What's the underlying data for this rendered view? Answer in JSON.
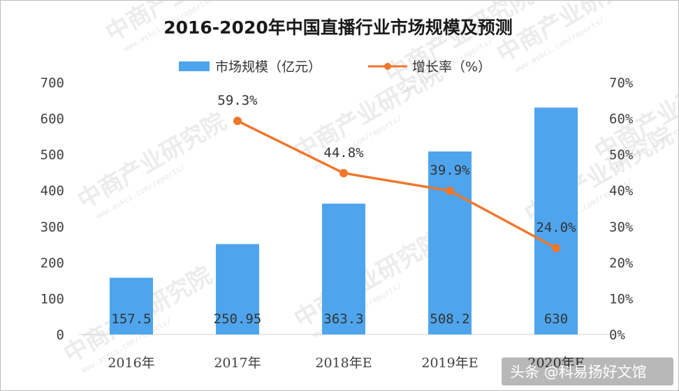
{
  "chart_data": {
    "type": "bar+line",
    "title": "2016-2020年中国直播行业市场规模及预测",
    "categories": [
      "2016年",
      "2017年",
      "2018年E",
      "2019年E",
      "2020年E"
    ],
    "series": [
      {
        "name": "市场规模（亿元）",
        "type": "bar",
        "axis": "left",
        "color": "#4ea5ee",
        "values": [
          157.5,
          250.95,
          363.3,
          508.2,
          630
        ],
        "labels": [
          "157.5",
          "250.95",
          "363.3",
          "508.2",
          "630"
        ]
      },
      {
        "name": "增长率（%）",
        "type": "line",
        "axis": "right",
        "color": "#f0762a",
        "values": [
          null,
          59.3,
          44.8,
          39.9,
          24.0
        ],
        "labels": [
          "",
          "59.3%",
          "44.8%",
          "39.9%",
          "24.0%"
        ]
      }
    ],
    "y_left": {
      "min": 0,
      "max": 700,
      "step": 100,
      "ticks": [
        "0",
        "100",
        "200",
        "300",
        "400",
        "500",
        "600",
        "700"
      ]
    },
    "y_right": {
      "min": 0,
      "max": 70,
      "step": 10,
      "ticks": [
        "0%",
        "10%",
        "20%",
        "30%",
        "40%",
        "50%",
        "60%",
        "70%"
      ]
    },
    "legend_position": "top-center"
  },
  "watermark": {
    "text": "中商产业研究院",
    "subtext": "www.askci.com/reports/"
  },
  "credit": "头条 @科易扬好文馆"
}
